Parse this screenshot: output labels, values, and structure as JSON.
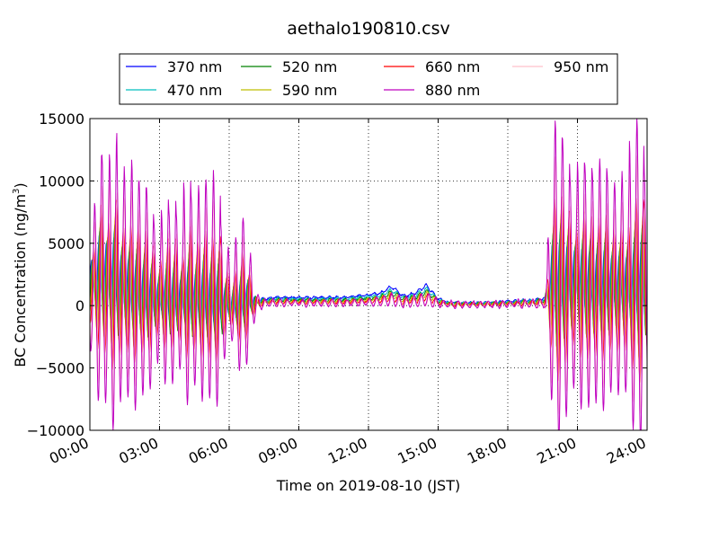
{
  "chart_data": {
    "type": "line",
    "title": "aethalo190810.csv",
    "xlabel": "Time on 2019-08-10 (JST)",
    "ylabel": "BC Concentration (ng/m",
    "ylabel_sup": "3",
    "ylabel_close": ")",
    "xlim": [
      0,
      24
    ],
    "ylim": [
      -10000,
      15000
    ],
    "x_ticks": [
      0,
      3,
      6,
      9,
      12,
      15,
      18,
      21,
      24
    ],
    "x_tick_labels": [
      "00:00",
      "03:00",
      "06:00",
      "09:00",
      "12:00",
      "15:00",
      "18:00",
      "21:00",
      "24:00"
    ],
    "y_ticks": [
      -10000,
      -5000,
      0,
      5000,
      10000,
      15000
    ],
    "y_tick_labels": [
      "−10000",
      "−5000",
      "0",
      "5000",
      "10000",
      "15000"
    ],
    "grid": true,
    "legend_position": "top-center",
    "x_unit": "hours since 00:00",
    "y_unit": "ng/m3",
    "series": [
      {
        "name": "370 nm",
        "color": "#0000ff",
        "amp": 0.25,
        "base": 0.9,
        "bias": 1.2,
        "lag": 0.0
      },
      {
        "name": "470 nm",
        "color": "#00bfbf",
        "amp": 0.32,
        "base": 0.8,
        "bias": 1.1,
        "lag": 0.02
      },
      {
        "name": "520 nm",
        "color": "#008000",
        "amp": 0.38,
        "base": 0.72,
        "bias": 1.0,
        "lag": 0.04
      },
      {
        "name": "590 nm",
        "color": "#bfbf00",
        "amp": 0.45,
        "base": 0.62,
        "bias": 0.95,
        "lag": 0.06
      },
      {
        "name": "660 nm",
        "color": "#ff0000",
        "amp": 0.58,
        "base": 0.52,
        "bias": 0.9,
        "lag": 0.09
      },
      {
        "name": "880 nm",
        "color": "#bf00bf",
        "amp": 1.0,
        "base": 0.4,
        "bias": 0.8,
        "lag": 0.12
      },
      {
        "name": "950 nm",
        "color": "#ffc0cb",
        "amp": 0.78,
        "base": 0.35,
        "bias": 0.75,
        "lag": 0.14
      }
    ],
    "envelope": {
      "t": [
        0.0,
        0.2,
        0.4,
        0.6,
        0.8,
        1.0,
        1.3,
        1.6,
        1.9,
        2.2,
        2.5,
        2.8,
        3.1,
        3.4,
        3.7,
        4.0,
        4.3,
        4.6,
        4.9,
        5.2,
        5.5,
        5.8,
        6.1,
        6.4,
        6.7,
        7.0,
        7.2,
        7.5,
        8.0,
        9.0,
        10.0,
        11.0,
        12.0,
        12.5,
        13.0,
        13.5,
        14.0,
        14.5,
        15.0,
        15.5,
        16.0,
        17.0,
        18.0,
        19.0,
        19.6,
        19.9,
        20.1,
        20.4,
        20.7,
        21.0,
        21.3,
        21.6,
        21.9,
        22.2,
        22.5,
        22.8,
        23.1,
        23.4,
        23.7,
        24.0
      ],
      "osc_amp": [
        5000,
        6500,
        10000,
        11000,
        9000,
        11500,
        10500,
        9000,
        9500,
        8000,
        9000,
        7000,
        6500,
        8000,
        9500,
        8500,
        9500,
        9000,
        10000,
        9500,
        9000,
        7000,
        4000,
        7000,
        8000,
        2500,
        800,
        400,
        300,
        300,
        300,
        300,
        300,
        500,
        600,
        600,
        500,
        500,
        400,
        300,
        300,
        300,
        300,
        400,
        500,
        9000,
        12500,
        11000,
        10000,
        9500,
        10500,
        11000,
        12000,
        12500,
        11000,
        12000,
        10500,
        11500,
        12500,
        9500
      ],
      "mean": [
        2000,
        2000,
        2500,
        2500,
        2000,
        2000,
        1500,
        1500,
        1000,
        1000,
        500,
        500,
        500,
        500,
        500,
        500,
        500,
        500,
        500,
        300,
        300,
        200,
        0,
        0,
        500,
        300,
        300,
        500,
        600,
        600,
        600,
        600,
        800,
        900,
        1400,
        700,
        900,
        1500,
        500,
        200,
        200,
        200,
        300,
        400,
        500,
        2000,
        1500,
        1500,
        2000,
        2000,
        1500,
        1500,
        1500,
        1500,
        1500,
        1500,
        1500,
        1500,
        1500,
        1500
      ],
      "osc_period": 0.32
    }
  }
}
